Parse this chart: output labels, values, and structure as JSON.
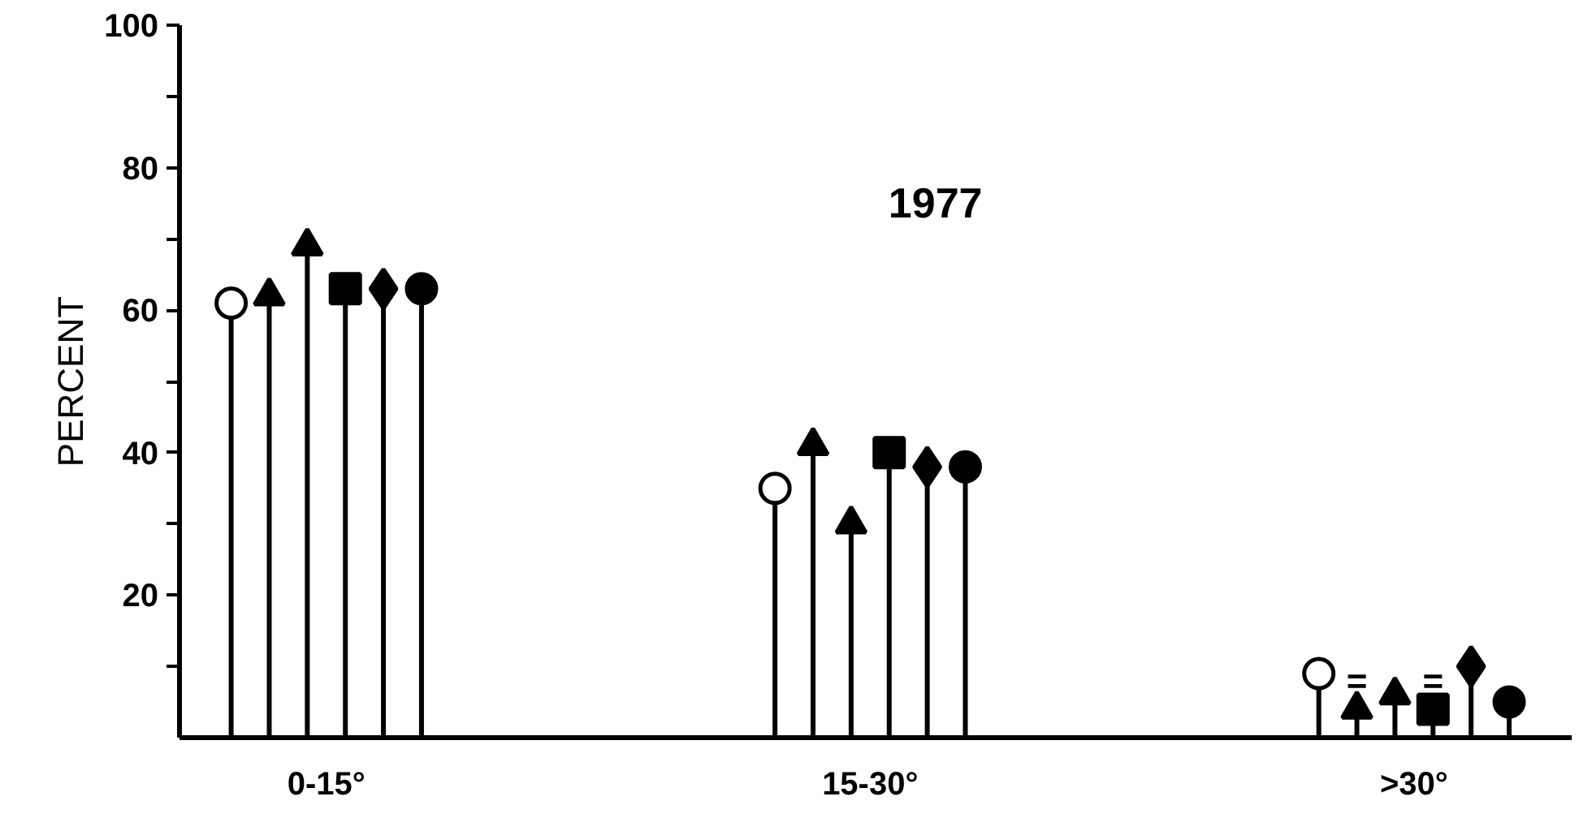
{
  "chart_data": {
    "type": "lollipop",
    "title": "1977",
    "ylabel": "PERCENT",
    "categories": [
      "0-15°",
      "15-30°",
      ">30°"
    ],
    "ylim": [
      0,
      100
    ],
    "yticks": [
      {
        "value": 10,
        "label": null
      },
      20,
      {
        "value": 30,
        "label": null
      },
      40,
      {
        "value": 50,
        "label": null
      },
      60,
      {
        "value": 70,
        "label": null
      },
      80,
      {
        "value": 90,
        "label": null
      },
      100
    ],
    "grid": false,
    "series": [
      {
        "color": "#ffffff",
        "marker": "circle",
        "values": [
          61,
          35,
          9
        ]
      },
      {
        "color": "#000000",
        "marker": "triangle",
        "values": [
          62,
          41,
          4
        ]
      },
      {
        "color": "#000000",
        "marker": "triangle",
        "values": [
          69,
          30,
          6
        ]
      },
      {
        "color": "#000000",
        "marker": "square",
        "values": [
          63,
          40,
          4
        ]
      },
      {
        "color": "#000000",
        "marker": "diamond",
        "values": [
          63,
          38,
          10
        ]
      },
      {
        "color": "#000000",
        "marker": "circle",
        "values": [
          63,
          38,
          5
        ]
      }
    ],
    "annotations": [
      "=",
      "="
    ]
  }
}
